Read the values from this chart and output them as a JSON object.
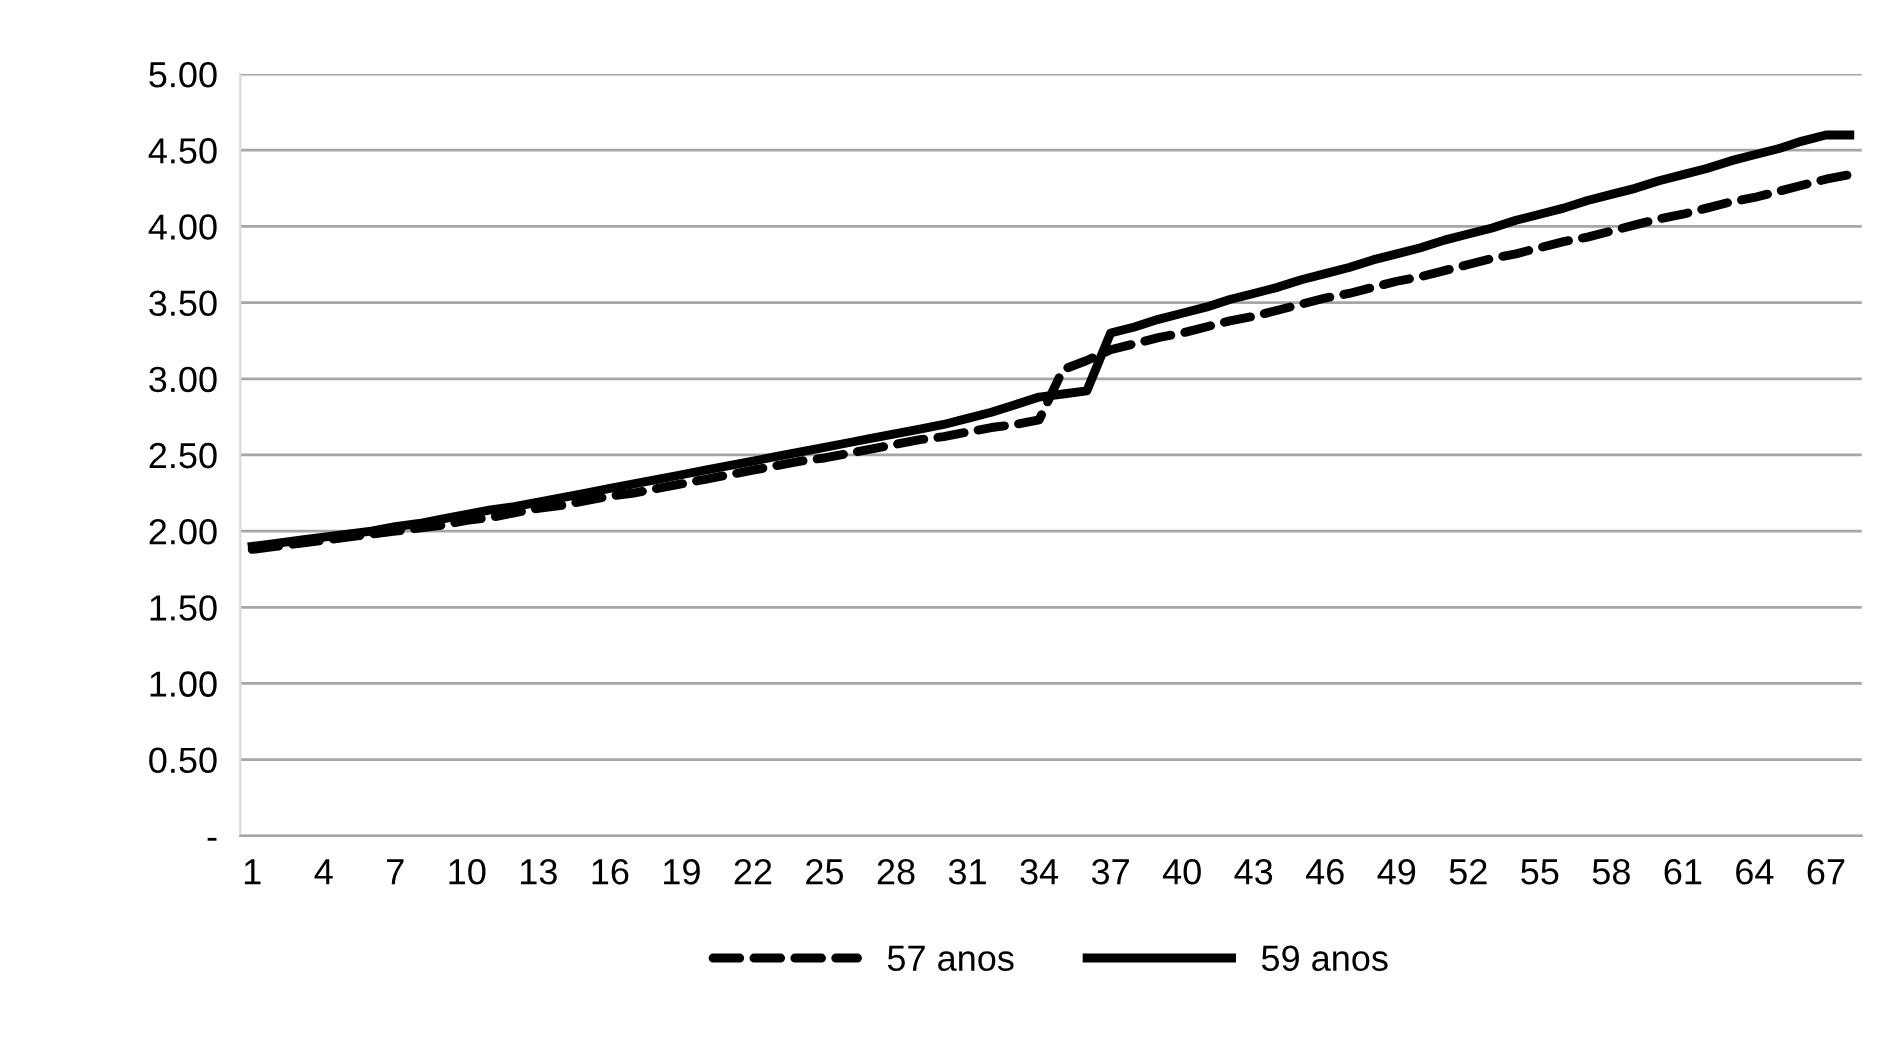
{
  "chart_data": {
    "type": "line",
    "categories": [
      "1",
      null,
      null,
      "4",
      null,
      null,
      "7",
      null,
      null,
      "10",
      null,
      null,
      "13",
      null,
      null,
      "16",
      null,
      null,
      "19",
      null,
      null,
      "22",
      null,
      null,
      "25",
      null,
      null,
      "28",
      null,
      null,
      "31",
      null,
      null,
      "34",
      null,
      null,
      "37",
      null,
      null,
      "40",
      null,
      null,
      "43",
      null,
      null,
      "46",
      null,
      null,
      "49",
      null,
      null,
      "52",
      null,
      null,
      "55",
      null,
      null,
      "58",
      null,
      null,
      "61",
      null,
      null,
      "64",
      null,
      null,
      "67",
      null
    ],
    "series": [
      {
        "name": "57 anos",
        "color": "#000000",
        "line_style": "dashed",
        "values": [
          1.88,
          1.9,
          1.92,
          1.94,
          1.96,
          1.98,
          2.0,
          2.02,
          2.04,
          2.07,
          2.09,
          2.12,
          2.15,
          2.17,
          2.2,
          2.23,
          2.25,
          2.28,
          2.31,
          2.34,
          2.37,
          2.4,
          2.43,
          2.46,
          2.48,
          2.51,
          2.54,
          2.57,
          2.6,
          2.62,
          2.65,
          2.68,
          2.7,
          2.73,
          3.06,
          3.12,
          3.19,
          3.23,
          3.27,
          3.3,
          3.34,
          3.38,
          3.41,
          3.45,
          3.49,
          3.53,
          3.56,
          3.6,
          3.64,
          3.67,
          3.71,
          3.75,
          3.79,
          3.82,
          3.86,
          3.9,
          3.93,
          3.97,
          4.01,
          4.05,
          4.08,
          4.12,
          4.16,
          4.19,
          4.23,
          4.27,
          4.31,
          4.34
        ]
      },
      {
        "name": "59 anos",
        "color": "#000000",
        "line_style": "solid",
        "values": [
          1.9,
          1.92,
          1.94,
          1.96,
          1.98,
          2.0,
          2.03,
          2.05,
          2.08,
          2.11,
          2.14,
          2.16,
          2.19,
          2.22,
          2.25,
          2.28,
          2.31,
          2.34,
          2.37,
          2.4,
          2.43,
          2.46,
          2.49,
          2.52,
          2.55,
          2.58,
          2.61,
          2.64,
          2.67,
          2.7,
          2.74,
          2.78,
          2.83,
          2.88,
          2.9,
          2.92,
          3.3,
          3.34,
          3.39,
          3.43,
          3.47,
          3.52,
          3.56,
          3.6,
          3.65,
          3.69,
          3.73,
          3.78,
          3.82,
          3.86,
          3.91,
          3.95,
          3.99,
          4.04,
          4.08,
          4.12,
          4.17,
          4.21,
          4.25,
          4.3,
          4.34,
          4.38,
          4.43,
          4.47,
          4.51,
          4.56,
          4.6,
          4.6
        ]
      }
    ],
    "ylim": [
      0,
      5
    ],
    "yticks": [
      {
        "value": 0,
        "label": "-"
      },
      {
        "value": 0.5,
        "label": "0.50"
      },
      {
        "value": 1,
        "label": "1.00"
      },
      {
        "value": 1.5,
        "label": "1.50"
      },
      {
        "value": 2,
        "label": "2.00"
      },
      {
        "value": 2.5,
        "label": "2.50"
      },
      {
        "value": 3,
        "label": "3.00"
      },
      {
        "value": 3.5,
        "label": "3.50"
      },
      {
        "value": 4,
        "label": "4.00"
      },
      {
        "value": 4.5,
        "label": "4.50"
      },
      {
        "value": 5,
        "label": "5.00"
      }
    ],
    "grid": "y",
    "legend": "bottom",
    "marker": "none"
  }
}
